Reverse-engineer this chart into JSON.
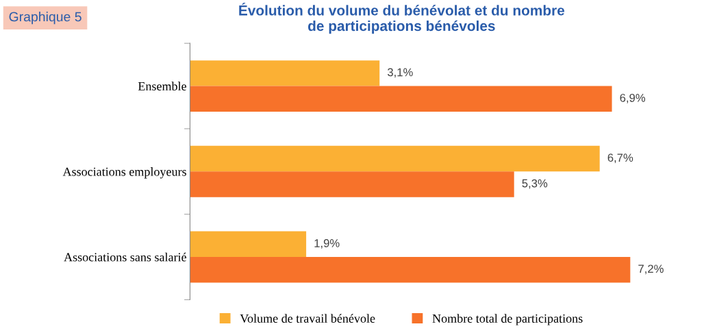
{
  "chart_data": {
    "type": "bar",
    "orientation": "horizontal",
    "title": "Évolution du volume du bénévolat et du nombre\nde participations bénévoles",
    "annotations": [
      "Graphique 5"
    ],
    "categories": [
      "Ensemble",
      "Associations employeurs",
      "Associations sans salarié"
    ],
    "series": [
      {
        "name": "Volume de travail bénévole",
        "color": "#fbb034",
        "values": [
          3.1,
          6.7,
          1.9
        ],
        "value_labels": [
          "3,1%",
          "6,7%",
          "1,9%"
        ]
      },
      {
        "name": "Nombre total de participations",
        "color": "#f7722a",
        "values": [
          6.9,
          5.3,
          7.2
        ],
        "value_labels": [
          "6,9%",
          "5,3%",
          "7,2%"
        ]
      }
    ],
    "legend": "bottom",
    "grid": false,
    "tick_labels": "y"
  }
}
